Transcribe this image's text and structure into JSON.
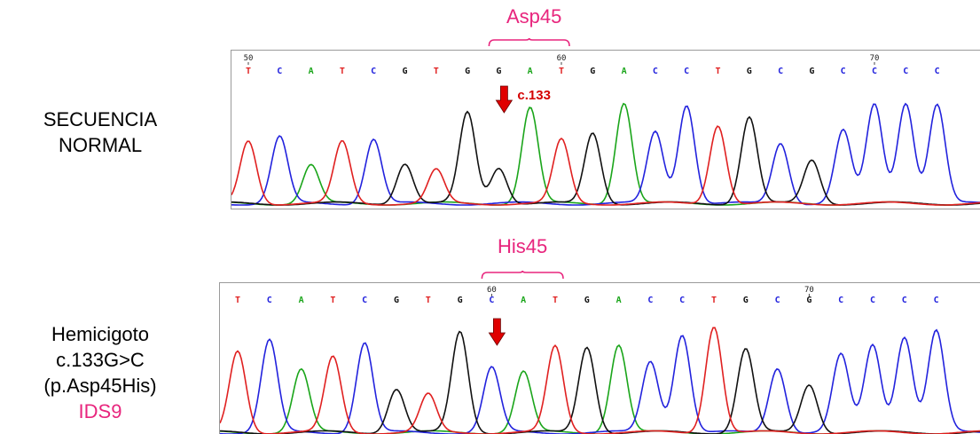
{
  "top": {
    "label_lines": [
      "SECUENCIA",
      "NORMAL"
    ],
    "codon": "Asp45",
    "mutation_label": "c.133",
    "start_pos": 50,
    "position_marks": [
      {
        "index": 0,
        "label": "50"
      },
      {
        "index": 10,
        "label": "60"
      },
      {
        "index": 20,
        "label": "70"
      }
    ],
    "bases": [
      "T",
      "C",
      "A",
      "T",
      "C",
      "G",
      "T",
      "G",
      "G",
      "A",
      "T",
      "G",
      "A",
      "C",
      "C",
      "T",
      "G",
      "C",
      "G",
      "C",
      "C",
      "C",
      "C"
    ],
    "codon_range": [
      8,
      10
    ],
    "arrow_index": 8
  },
  "bottom": {
    "label_lines": [
      "Hemicigoto",
      "c.133G>C",
      "(p.Asp45His)"
    ],
    "id_label": "IDS9",
    "codon": "His45",
    "position_marks": [
      {
        "index": 8,
        "label": "60"
      },
      {
        "index": 18,
        "label": "70"
      }
    ],
    "bases": [
      "T",
      "C",
      "A",
      "T",
      "C",
      "G",
      "T",
      "G",
      "C",
      "A",
      "T",
      "G",
      "A",
      "C",
      "C",
      "T",
      "G",
      "C",
      "G",
      "C",
      "C",
      "C",
      "C"
    ],
    "codon_range": [
      8,
      10
    ],
    "arrow_index": 8
  },
  "colors": {
    "A": "#1aa51a",
    "C": "#2222dd",
    "G": "#111111",
    "T": "#e02020",
    "accent": "#e8257d",
    "arrow": "#e00000",
    "frame": "#9a9a9a"
  }
}
